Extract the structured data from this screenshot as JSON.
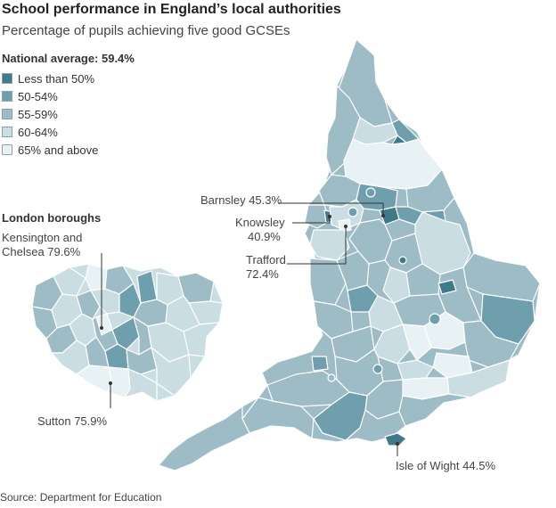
{
  "header": {
    "title": "School performance in England’s local authorities",
    "subtitle": "Percentage of pupils achieving five good GCSEs"
  },
  "national_average": "National average: 59.4%",
  "legend": [
    {
      "label": "Less than 50%",
      "color": "#3f7a88"
    },
    {
      "label": "50-54%",
      "color": "#6f9ead"
    },
    {
      "label": "55-59%",
      "color": "#9dbcc6"
    },
    {
      "label": "60-64%",
      "color": "#c9dde3"
    },
    {
      "label": "65% and above",
      "color": "#e8f2f5"
    }
  ],
  "london": {
    "title": "London boroughs",
    "kensington": {
      "name": "Kensington and",
      "name2": "Chelsea 79.6%"
    },
    "sutton": "Sutton 75.9%"
  },
  "callouts": {
    "barnsley": "Barnsley 45.3%",
    "knowsley": {
      "line1": "Knowsley",
      "line2": "40.9%"
    },
    "trafford": {
      "line1": "Trafford",
      "line2": "72.4%"
    },
    "isle_of_wight": "Isle of Wight 44.5%"
  },
  "source": "Source: Department for Education",
  "colors": {
    "outline": "#ffffff",
    "leader": "#333333"
  }
}
